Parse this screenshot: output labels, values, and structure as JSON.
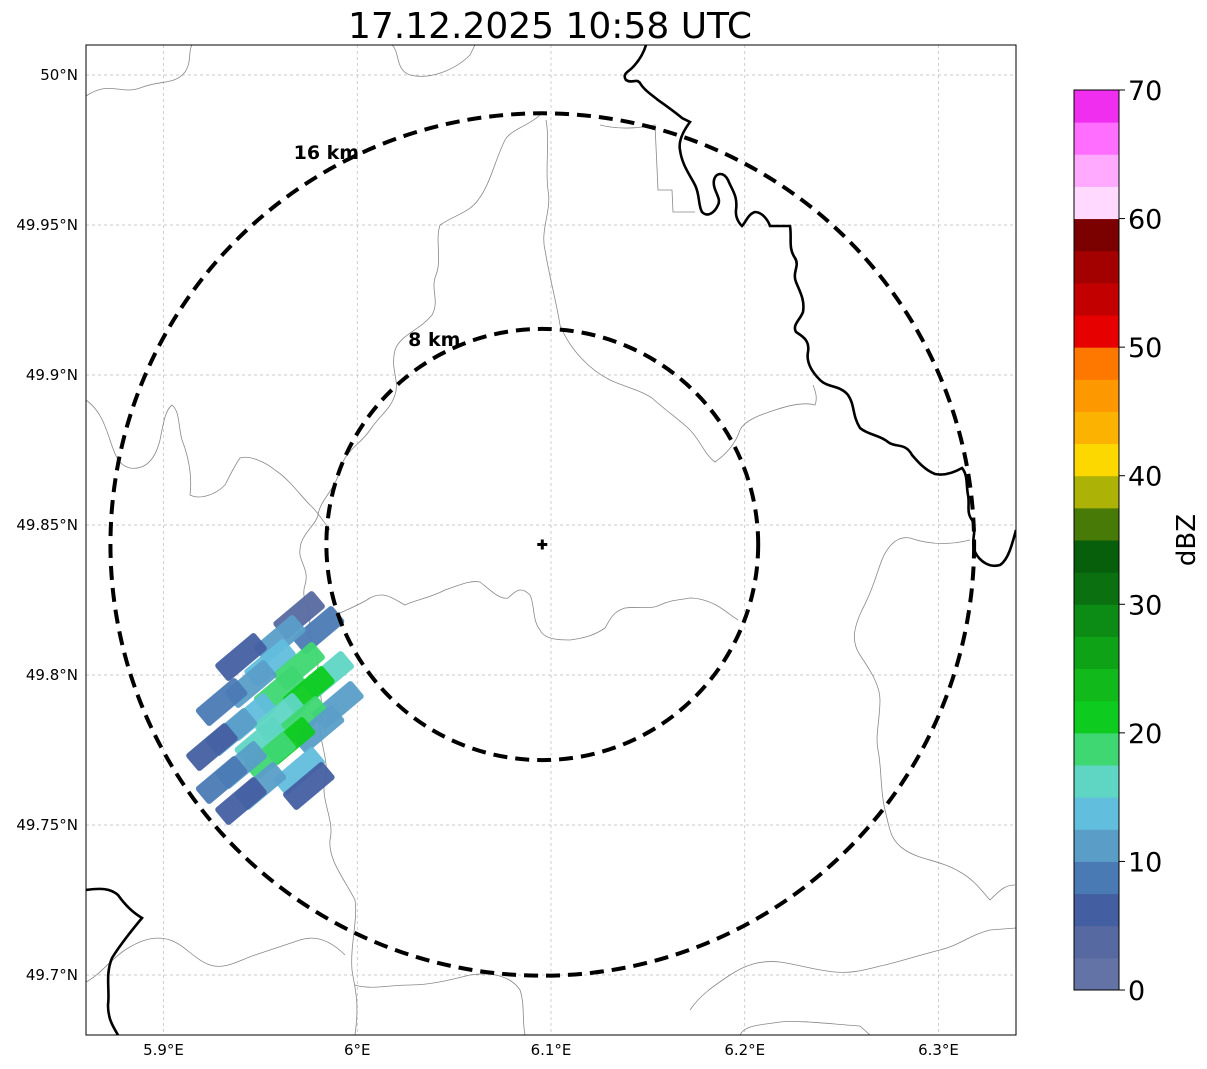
{
  "title": "17.12.2025 10:58 UTC",
  "map": {
    "lon_range": [
      5.86,
      6.34
    ],
    "lat_range": [
      49.68,
      50.01
    ],
    "lon_ticks": [
      {
        "value": 5.9,
        "label": "5.9°E"
      },
      {
        "value": 6.0,
        "label": "6°E"
      },
      {
        "value": 6.1,
        "label": "6.1°E"
      },
      {
        "value": 6.2,
        "label": "6.2°E"
      },
      {
        "value": 6.3,
        "label": "6.3°E"
      }
    ],
    "lat_ticks": [
      {
        "value": 49.7,
        "label": "49.7°N"
      },
      {
        "value": 49.75,
        "label": "49.75°N"
      },
      {
        "value": 49.8,
        "label": "49.8°N"
      },
      {
        "value": 49.85,
        "label": "49.85°N"
      },
      {
        "value": 49.9,
        "label": "49.9°N"
      },
      {
        "value": 49.95,
        "label": "49.95°N"
      },
      {
        "value": 50.0,
        "label": "50°N"
      }
    ],
    "gridlines": true,
    "radar_site": {
      "lon": 6.0955,
      "lat": 49.8435,
      "marker": "plus"
    },
    "range_rings": [
      {
        "radius_km": 8,
        "label": "8 km"
      },
      {
        "radius_km": 16,
        "label": "16 km"
      }
    ],
    "ring_style": "black dashed",
    "echo_cells_dbz": [
      {
        "lon": 5.97,
        "lat": 49.82,
        "dbz": 4
      },
      {
        "lon": 5.98,
        "lat": 49.815,
        "dbz": 8
      },
      {
        "lon": 5.96,
        "lat": 49.812,
        "dbz": 10
      },
      {
        "lon": 5.94,
        "lat": 49.806,
        "dbz": 6
      },
      {
        "lon": 5.955,
        "lat": 49.804,
        "dbz": 13
      },
      {
        "lon": 5.97,
        "lat": 49.803,
        "dbz": 18
      },
      {
        "lon": 5.985,
        "lat": 49.8,
        "dbz": 15
      },
      {
        "lon": 5.945,
        "lat": 49.797,
        "dbz": 12
      },
      {
        "lon": 5.96,
        "lat": 49.795,
        "dbz": 18
      },
      {
        "lon": 5.975,
        "lat": 49.795,
        "dbz": 21
      },
      {
        "lon": 5.99,
        "lat": 49.79,
        "dbz": 10
      },
      {
        "lon": 5.93,
        "lat": 49.791,
        "dbz": 8
      },
      {
        "lon": 5.945,
        "lat": 49.786,
        "dbz": 14
      },
      {
        "lon": 5.96,
        "lat": 49.786,
        "dbz": 17
      },
      {
        "lon": 5.972,
        "lat": 49.785,
        "dbz": 19
      },
      {
        "lon": 5.98,
        "lat": 49.782,
        "dbz": 11
      },
      {
        "lon": 5.935,
        "lat": 49.781,
        "dbz": 12
      },
      {
        "lon": 5.95,
        "lat": 49.778,
        "dbz": 16
      },
      {
        "lon": 5.965,
        "lat": 49.778,
        "dbz": 22
      },
      {
        "lon": 5.925,
        "lat": 49.776,
        "dbz": 7
      },
      {
        "lon": 5.955,
        "lat": 49.773,
        "dbz": 19
      },
      {
        "lon": 5.94,
        "lat": 49.77,
        "dbz": 11
      },
      {
        "lon": 5.97,
        "lat": 49.768,
        "dbz": 13
      },
      {
        "lon": 5.93,
        "lat": 49.765,
        "dbz": 9
      },
      {
        "lon": 5.95,
        "lat": 49.763,
        "dbz": 12
      },
      {
        "lon": 5.975,
        "lat": 49.763,
        "dbz": 5
      },
      {
        "lon": 5.94,
        "lat": 49.758,
        "dbz": 6
      }
    ]
  },
  "colorbar": {
    "label": "dBZ",
    "min": 0,
    "max": 70,
    "step": 2.5,
    "tick_values": [
      0,
      10,
      20,
      30,
      40,
      50,
      60,
      70
    ],
    "tick_labels": [
      "0",
      "10",
      "20",
      "30",
      "40",
      "50",
      "60",
      "70"
    ],
    "colors": [
      "#6373a5",
      "#5769a1",
      "#445fa1",
      "#4a7ab4",
      "#5a9ec8",
      "#62bedd",
      "#5fd6c4",
      "#3ed772",
      "#0ecb1f",
      "#11b91a",
      "#0ea317",
      "#0c8c14",
      "#0a7010",
      "#075e0b",
      "#487a08",
      "#adb206",
      "#fcd800",
      "#fcb200",
      "#fe9800",
      "#fe7800",
      "#e70000",
      "#c20000",
      "#a30000",
      "#7b0000",
      "#ffd9ff",
      "#ffaaff",
      "#ff6eff",
      "#f02ef0"
    ]
  }
}
